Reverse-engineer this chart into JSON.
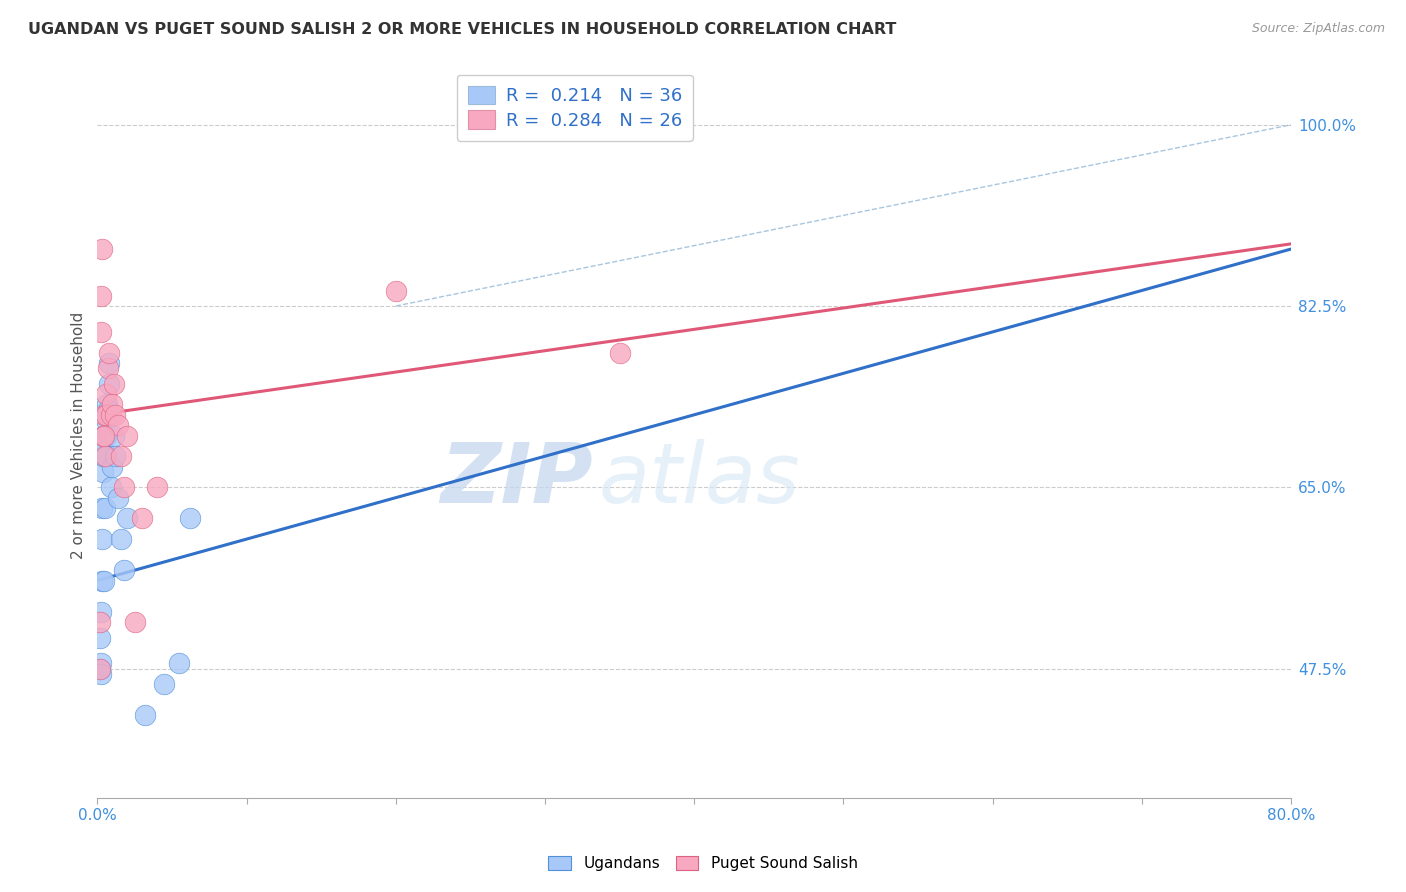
{
  "title": "UGANDAN VS PUGET SOUND SALISH 2 OR MORE VEHICLES IN HOUSEHOLD CORRELATION CHART",
  "source": "Source: ZipAtlas.com",
  "ylabel": "2 or more Vehicles in Household",
  "xlim": [
    0.0,
    80.0
  ],
  "ylim": [
    35.0,
    105.0
  ],
  "yticks": [
    47.5,
    65.0,
    82.5,
    100.0
  ],
  "ugandan_R": 0.214,
  "ugandan_N": 36,
  "puget_R": 0.284,
  "puget_N": 26,
  "ugandan_color": "#a8c8f8",
  "puget_color": "#f8a8c0",
  "ugandan_line_color": "#3070c8",
  "puget_line_color": "#e05878",
  "diagonal_color": "#9abcd8",
  "watermark_zip": "ZIP",
  "watermark_atlas": "atlas",
  "ugandan_line_x0": 0.0,
  "ugandan_line_y0": 56.0,
  "ugandan_line_x1": 80.0,
  "ugandan_line_y1": 88.0,
  "puget_line_x0": 0.0,
  "puget_line_y0": 72.0,
  "puget_line_x1": 80.0,
  "puget_line_y1": 88.5,
  "diagonal_x0": 20.0,
  "diagonal_y0": 82.5,
  "diagonal_x1": 80.0,
  "diagonal_y1": 100.0,
  "ugandan_x": [
    0.15,
    0.18,
    0.2,
    0.22,
    0.25,
    0.25,
    0.28,
    0.3,
    0.32,
    0.35,
    0.38,
    0.4,
    0.42,
    0.45,
    0.48,
    0.5,
    0.52,
    0.55,
    0.58,
    0.6,
    0.65,
    0.7,
    0.75,
    0.8,
    0.9,
    1.0,
    1.1,
    1.2,
    1.4,
    1.6,
    1.8,
    2.0,
    3.2,
    4.5,
    5.5,
    6.2
  ],
  "ugandan_y": [
    47.5,
    50.5,
    47.5,
    48.0,
    53.0,
    47.0,
    56.0,
    60.0,
    63.0,
    66.5,
    68.0,
    70.0,
    56.0,
    68.5,
    70.0,
    72.0,
    63.0,
    68.0,
    70.0,
    71.5,
    73.0,
    72.5,
    75.0,
    77.0,
    65.0,
    67.0,
    70.0,
    68.0,
    64.0,
    60.0,
    57.0,
    62.0,
    43.0,
    46.0,
    48.0,
    62.0
  ],
  "puget_x": [
    0.15,
    0.18,
    0.22,
    0.28,
    0.35,
    0.42,
    0.5,
    0.55,
    0.6,
    0.7,
    0.8,
    0.9,
    1.0,
    1.2,
    1.4,
    1.6,
    1.8,
    2.0,
    2.5,
    3.0,
    4.0,
    0.25,
    0.45,
    1.1,
    20.0,
    35.0
  ],
  "puget_y": [
    47.5,
    52.0,
    80.0,
    88.0,
    70.0,
    72.0,
    68.0,
    74.0,
    72.0,
    76.5,
    78.0,
    72.0,
    73.0,
    72.0,
    71.0,
    68.0,
    65.0,
    70.0,
    52.0,
    62.0,
    65.0,
    83.5,
    70.0,
    75.0,
    84.0,
    78.0
  ]
}
